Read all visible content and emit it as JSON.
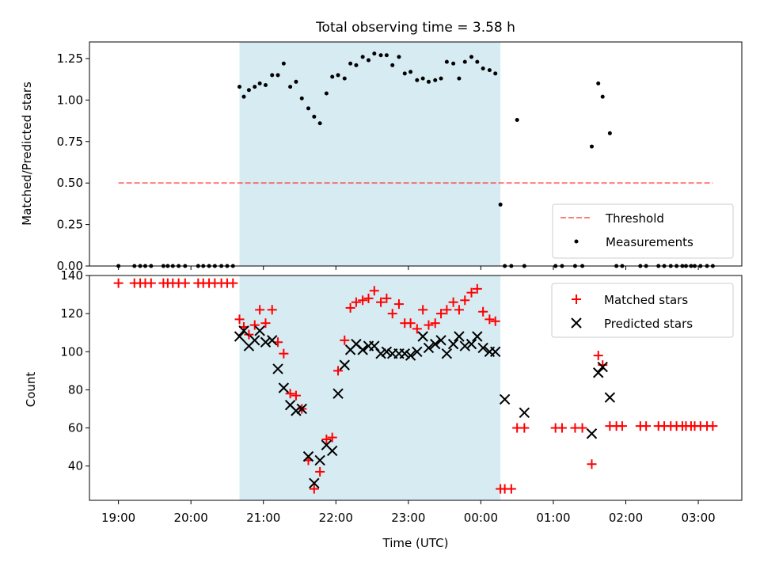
{
  "title": "Total observing time = 3.58 h",
  "colors": {
    "shade": "#add8e6",
    "threshold": "#ff0000",
    "matched": "#ff0000",
    "predicted": "#000000",
    "measurement": "#000000"
  },
  "chart_data": [
    {
      "type": "scatter",
      "panel": "top",
      "title": "Total observing time = 3.58 h",
      "xlabel": "",
      "ylabel": "Matched/Predicted stars",
      "xlim": [
        18.6,
        27.6
      ],
      "ylim": [
        0,
        1.35
      ],
      "yticks": [
        0,
        0.25,
        0.5,
        0.75,
        1.0,
        1.25
      ],
      "ytick_labels": [
        "0.00",
        "0.25",
        "0.50",
        "0.75",
        "1.00",
        "1.25"
      ],
      "grid": false,
      "legend": "lower-right",
      "shaded_span": [
        20.67,
        24.27
      ],
      "threshold": {
        "name": "Threshold",
        "y": 0.5,
        "x": [
          19.0,
          27.2
        ]
      },
      "series": [
        {
          "name": "Measurements",
          "x": [
            19.0,
            19.22,
            19.3,
            19.37,
            19.45,
            19.62,
            19.68,
            19.75,
            19.83,
            19.92,
            20.1,
            20.17,
            20.25,
            20.33,
            20.42,
            20.5,
            20.58,
            20.67,
            20.73,
            20.8,
            20.88,
            20.95,
            21.03,
            21.12,
            21.2,
            21.28,
            21.37,
            21.45,
            21.53,
            21.62,
            21.7,
            21.78,
            21.87,
            21.95,
            22.03,
            22.12,
            22.2,
            22.28,
            22.37,
            22.45,
            22.53,
            22.62,
            22.7,
            22.78,
            22.87,
            22.95,
            23.03,
            23.12,
            23.2,
            23.28,
            23.37,
            23.45,
            23.53,
            23.62,
            23.7,
            23.78,
            23.87,
            23.95,
            24.03,
            24.12,
            24.2,
            24.27,
            24.33,
            24.42,
            24.5,
            24.6,
            25.03,
            25.12,
            25.3,
            25.4,
            25.53,
            25.62,
            25.68,
            25.78,
            25.87,
            25.95,
            26.2,
            26.28,
            26.45,
            26.53,
            26.62,
            26.7,
            26.78,
            26.83,
            26.9,
            26.95,
            27.03,
            27.12,
            27.2
          ],
          "y": [
            0.0,
            0.0,
            0.0,
            0.0,
            0.0,
            0.0,
            0.0,
            0.0,
            0.0,
            0.0,
            0.0,
            0.0,
            0.0,
            0.0,
            0.0,
            0.0,
            0.0,
            1.08,
            1.02,
            1.06,
            1.08,
            1.1,
            1.09,
            1.15,
            1.15,
            1.22,
            1.08,
            1.11,
            1.01,
            0.95,
            0.9,
            0.86,
            1.04,
            1.14,
            1.15,
            1.13,
            1.22,
            1.21,
            1.26,
            1.24,
            1.28,
            1.27,
            1.27,
            1.21,
            1.26,
            1.16,
            1.17,
            1.12,
            1.13,
            1.11,
            1.12,
            1.13,
            1.23,
            1.22,
            1.13,
            1.23,
            1.26,
            1.23,
            1.19,
            1.18,
            1.16,
            0.37,
            0.0,
            0.0,
            0.88,
            0.0,
            0.0,
            0.0,
            0.0,
            0.0,
            0.72,
            1.1,
            1.02,
            0.8,
            0.0,
            0.0,
            0.0,
            0.0,
            0.0,
            0.0,
            0.0,
            0.0,
            0.0,
            0.0,
            0.0,
            0.0,
            0.0,
            0.0,
            0.0
          ]
        }
      ]
    },
    {
      "type": "scatter",
      "panel": "bottom",
      "xlabel": "Time (UTC)",
      "ylabel": "Count",
      "xlim": [
        18.6,
        27.6
      ],
      "ylim": [
        22,
        140
      ],
      "xticks": [
        19,
        20,
        21,
        22,
        23,
        24,
        25,
        26,
        27
      ],
      "xtick_labels": [
        "19:00",
        "20:00",
        "21:00",
        "22:00",
        "23:00",
        "00:00",
        "01:00",
        "02:00",
        "03:00"
      ],
      "yticks": [
        40,
        60,
        80,
        100,
        120,
        140
      ],
      "ytick_labels": [
        "40",
        "60",
        "80",
        "100",
        "120",
        "140"
      ],
      "grid": false,
      "legend": "top-right",
      "shaded_span": [
        20.67,
        24.27
      ],
      "series": [
        {
          "name": "Matched stars",
          "marker": "plus",
          "x": [
            19.0,
            19.22,
            19.3,
            19.37,
            19.45,
            19.62,
            19.68,
            19.75,
            19.83,
            19.92,
            20.1,
            20.17,
            20.25,
            20.33,
            20.42,
            20.5,
            20.58,
            20.67,
            20.73,
            20.8,
            20.88,
            20.95,
            21.03,
            21.12,
            21.2,
            21.28,
            21.37,
            21.45,
            21.53,
            21.62,
            21.7,
            21.78,
            21.87,
            21.95,
            22.03,
            22.12,
            22.2,
            22.28,
            22.37,
            22.45,
            22.53,
            22.62,
            22.7,
            22.78,
            22.87,
            22.95,
            23.03,
            23.12,
            23.2,
            23.28,
            23.37,
            23.45,
            23.53,
            23.62,
            23.7,
            23.78,
            23.87,
            23.95,
            24.03,
            24.12,
            24.2,
            24.27,
            24.33,
            24.42,
            24.5,
            24.6,
            25.03,
            25.12,
            25.3,
            25.4,
            25.53,
            25.62,
            25.68,
            25.78,
            25.87,
            25.95,
            26.2,
            26.28,
            26.45,
            26.53,
            26.62,
            26.7,
            26.78,
            26.83,
            26.9,
            26.95,
            27.03,
            27.12,
            27.2
          ],
          "y": [
            136,
            136,
            136,
            136,
            136,
            136,
            136,
            136,
            136,
            136,
            136,
            136,
            136,
            136,
            136,
            136,
            136,
            117,
            113,
            109,
            114,
            122,
            115,
            122,
            105,
            99,
            78,
            77,
            70,
            43,
            28,
            37,
            54,
            55,
            90,
            106,
            123,
            126,
            127,
            128,
            132,
            126,
            128,
            120,
            125,
            115,
            115,
            112,
            122,
            114,
            115,
            120,
            122,
            126,
            122,
            127,
            131,
            133,
            121,
            117,
            116,
            28,
            28,
            28,
            60,
            60,
            60,
            60,
            60,
            60,
            41,
            98,
            93,
            61,
            61,
            61,
            61,
            61,
            61,
            61,
            61,
            61,
            61,
            61,
            61,
            61,
            61,
            61,
            61
          ]
        },
        {
          "name": "Predicted stars",
          "marker": "x",
          "x": [
            20.67,
            20.73,
            20.8,
            20.88,
            20.95,
            21.03,
            21.12,
            21.2,
            21.28,
            21.37,
            21.45,
            21.53,
            21.62,
            21.7,
            21.78,
            21.87,
            21.95,
            22.03,
            22.12,
            22.2,
            22.28,
            22.37,
            22.45,
            22.53,
            22.62,
            22.7,
            22.78,
            22.87,
            22.95,
            23.03,
            23.12,
            23.2,
            23.28,
            23.37,
            23.45,
            23.53,
            23.62,
            23.7,
            23.78,
            23.87,
            23.95,
            24.03,
            24.12,
            24.2,
            24.33,
            24.6,
            25.53,
            25.62,
            25.68,
            25.78
          ],
          "y": [
            108,
            111,
            103,
            106,
            111,
            105,
            106,
            91,
            81,
            72,
            69,
            70,
            45,
            31,
            43,
            51,
            48,
            78,
            93,
            101,
            104,
            101,
            103,
            103,
            99,
            100,
            99,
            99,
            99,
            98,
            100,
            108,
            102,
            104,
            106,
            99,
            104,
            108,
            103,
            104,
            108,
            102,
            100,
            100,
            75,
            68,
            57,
            89,
            92,
            76
          ]
        }
      ]
    }
  ]
}
